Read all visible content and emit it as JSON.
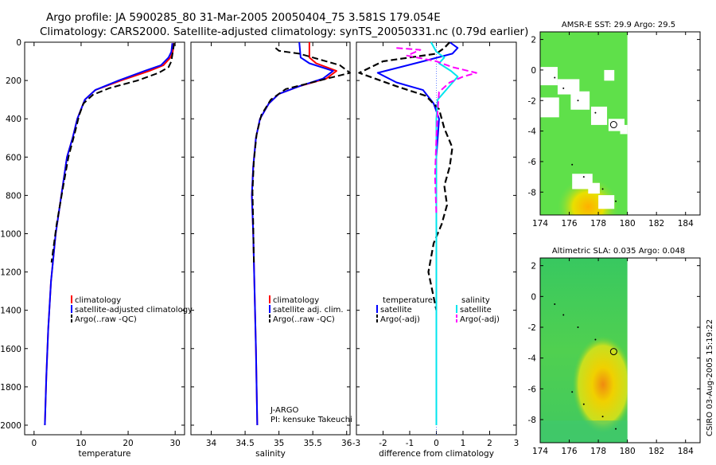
{
  "figure": {
    "title_line1": "Argo profile: JA 5900285_80 31-Mar-2005 20050404_75 3.581S 179.054E",
    "title_line2": "Climatology: CARS2000. Satellite-adjusted climatology: synTS_20050331.nc (0.79d earlier)",
    "footer_stamp": "CSIRO 03-Aug-2005 15:19:22"
  },
  "colors": {
    "climatology": "#ff0000",
    "satellite": "#0000ff",
    "argo": "#000000",
    "salinity": "#00e5ee",
    "argo_salinity": "#ff00ff",
    "sst_green": "#5fe04a",
    "sla_green": "#3fd65a"
  },
  "chart_data": [
    {
      "type": "line",
      "id": "temperature",
      "xlabel": "temperature",
      "ylabel": "",
      "xlim": [
        -2,
        32
      ],
      "ylim": [
        2050,
        0
      ],
      "xticks": [
        0,
        10,
        20,
        30
      ],
      "yticks": [
        0,
        200,
        400,
        600,
        800,
        1000,
        1200,
        1400,
        1600,
        1800,
        2000
      ],
      "legend": [
        "climatology",
        "satellite-adjusted climatology",
        "Argo(..raw -QC)"
      ],
      "series": [
        {
          "name": "climatology",
          "key": "climatology",
          "dash": "",
          "width": 2,
          "x": [
            29.7,
            29.5,
            29.0,
            27.5,
            24.5,
            18.5,
            13.0,
            10.8,
            10.0,
            9.2,
            8.2,
            7.0,
            5.8,
            4.6,
            3.6,
            3.0,
            2.6,
            2.3
          ],
          "y": [
            5,
            50,
            80,
            120,
            150,
            200,
            250,
            300,
            350,
            400,
            500,
            600,
            800,
            1000,
            1250,
            1500,
            1750,
            2000
          ]
        },
        {
          "name": "satellite-adjusted climatology",
          "key": "satellite",
          "dash": "",
          "width": 2,
          "x": [
            29.4,
            29.2,
            28.6,
            27.0,
            23.5,
            18.0,
            13.0,
            10.8,
            10.0,
            9.2,
            8.2,
            7.0,
            5.8,
            4.6,
            3.6,
            3.0,
            2.6,
            2.3
          ],
          "y": [
            5,
            50,
            80,
            120,
            150,
            200,
            250,
            300,
            350,
            400,
            500,
            600,
            800,
            1000,
            1250,
            1500,
            1750,
            2000
          ]
        },
        {
          "name": "Argo(..raw -QC)",
          "key": "argo",
          "dash": "8,4",
          "width": 2,
          "x": [
            29.8,
            29.5,
            29.2,
            28.6,
            26.5,
            22.0,
            16.0,
            12.5,
            10.5,
            9.6,
            8.6,
            7.3,
            6.0,
            4.8,
            3.7
          ],
          "y": [
            5,
            50,
            100,
            130,
            160,
            200,
            240,
            275,
            320,
            380,
            480,
            600,
            780,
            950,
            1150
          ]
        }
      ]
    },
    {
      "type": "line",
      "id": "salinity",
      "xlabel": "salinity",
      "xlim": [
        33.7,
        36.05
      ],
      "ylim": [
        2050,
        0
      ],
      "xticks": [
        34,
        34.5,
        35,
        35.5,
        36
      ],
      "legend": [
        "climatology",
        "satellite adj. clim.",
        "Argo(..raw -QC)"
      ],
      "annotations": [
        "J-ARGO",
        "PI: kensuke Takeuchi"
      ],
      "series": [
        {
          "name": "climatology",
          "key": "climatology",
          "dash": "",
          "width": 2,
          "x": [
            35.45,
            35.45,
            35.55,
            35.85,
            35.7,
            35.3,
            35.0,
            34.85,
            34.72,
            34.66,
            34.62,
            34.6,
            34.62,
            34.64,
            34.66,
            34.68
          ],
          "y": [
            0,
            80,
            110,
            150,
            190,
            230,
            270,
            320,
            400,
            500,
            650,
            800,
            1000,
            1300,
            1600,
            2000
          ]
        },
        {
          "name": "satellite adj. clim.",
          "key": "satellite",
          "dash": "",
          "width": 2,
          "x": [
            35.3,
            35.32,
            35.45,
            35.8,
            35.65,
            35.3,
            35.0,
            34.85,
            34.72,
            34.66,
            34.62,
            34.6,
            34.62,
            34.64,
            34.66,
            34.68
          ],
          "y": [
            0,
            80,
            110,
            150,
            190,
            230,
            270,
            320,
            400,
            500,
            650,
            800,
            1000,
            1300,
            1600,
            2000
          ]
        },
        {
          "name": "Argo(..raw -QC)",
          "key": "argo",
          "dash": "8,4",
          "width": 2,
          "x": [
            34.95,
            35.0,
            35.3,
            35.9,
            36.05,
            35.6,
            35.1,
            34.88,
            34.74,
            34.67,
            34.63,
            34.61,
            34.62,
            34.63
          ],
          "y": [
            30,
            45,
            60,
            120,
            160,
            200,
            245,
            300,
            380,
            480,
            620,
            780,
            950,
            1150
          ]
        }
      ]
    },
    {
      "type": "line",
      "id": "difference",
      "xlabel": "difference from climatology",
      "xlim": [
        -3,
        3
      ],
      "ylim": [
        2050,
        0
      ],
      "xticks": [
        -3,
        -2,
        -1,
        0,
        1,
        2,
        3
      ],
      "legend_left_title": "temperature",
      "legend_left": [
        "satellite",
        "Argo(-adj)"
      ],
      "legend_right_title": "salinity",
      "legend_right": [
        "satellite",
        "Argo(-adj)"
      ],
      "series": [
        {
          "name": "temperature satellite",
          "key": "satellite",
          "dash": "",
          "width": 2,
          "x": [
            0.5,
            0.8,
            0.6,
            -0.5,
            -2.2,
            -1.5,
            -0.5,
            -0.1,
            0.1,
            0.0,
            0.0,
            0.0
          ],
          "y": [
            0,
            30,
            60,
            100,
            160,
            210,
            250,
            320,
            400,
            600,
            1000,
            2000
          ]
        },
        {
          "name": "temperature Argo(-adj)",
          "key": "argo",
          "dash": "8,4",
          "width": 2.2,
          "x": [
            0.5,
            0.3,
            0.0,
            -2.0,
            -2.9,
            -2.3,
            -1.5,
            -0.4,
            0.1,
            0.3,
            0.6,
            0.5,
            0.4,
            0.3,
            0.4,
            0.2,
            -0.1,
            -0.3,
            0.0
          ],
          "y": [
            0,
            30,
            60,
            100,
            160,
            190,
            230,
            280,
            350,
            450,
            550,
            650,
            700,
            750,
            850,
            950,
            1050,
            1200,
            1400
          ]
        },
        {
          "name": "salinity satellite",
          "key": "salinity",
          "dash": "",
          "width": 2,
          "x": [
            -0.2,
            0.0,
            0.3,
            0.1,
            0.55,
            0.8,
            0.55,
            0.05,
            0.0,
            0.0,
            0.0
          ],
          "y": [
            0,
            50,
            80,
            110,
            150,
            180,
            220,
            300,
            400,
            800,
            2000
          ]
        },
        {
          "name": "salinity Argo(-adj)",
          "key": "argo_salinity",
          "dash": "8,4",
          "width": 2,
          "x": [
            -1.5,
            -0.6,
            -1.1,
            0.0,
            0.6,
            1.5,
            1.0,
            0.5,
            0.1,
            0.05,
            0.0,
            -0.05,
            0.0
          ],
          "y": [
            30,
            40,
            70,
            100,
            130,
            160,
            180,
            210,
            260,
            350,
            500,
            700,
            900
          ]
        }
      ]
    },
    {
      "type": "heatmap",
      "id": "sst-map",
      "title": "AMSR-E SST: 29.9 Argo: 29.5",
      "xlim": [
        174,
        185
      ],
      "ylim": [
        -9.5,
        2.5
      ],
      "xticks": [
        174,
        176,
        178,
        180,
        182,
        184
      ],
      "yticks": [
        2,
        0,
        -2,
        -4,
        -6,
        -8
      ],
      "profile_marker": {
        "lon": 179.054,
        "lat": -3.581
      }
    },
    {
      "type": "heatmap",
      "id": "sla-map",
      "title": "Altimetric SLA: 0.035 Argo: 0.048",
      "xlim": [
        174,
        185
      ],
      "ylim": [
        -9.5,
        2.5
      ],
      "xticks": [
        174,
        176,
        178,
        180,
        182,
        184
      ],
      "yticks": [
        2,
        0,
        -2,
        -4,
        -6,
        -8
      ],
      "profile_marker": {
        "lon": 179.054,
        "lat": -3.581
      }
    }
  ]
}
